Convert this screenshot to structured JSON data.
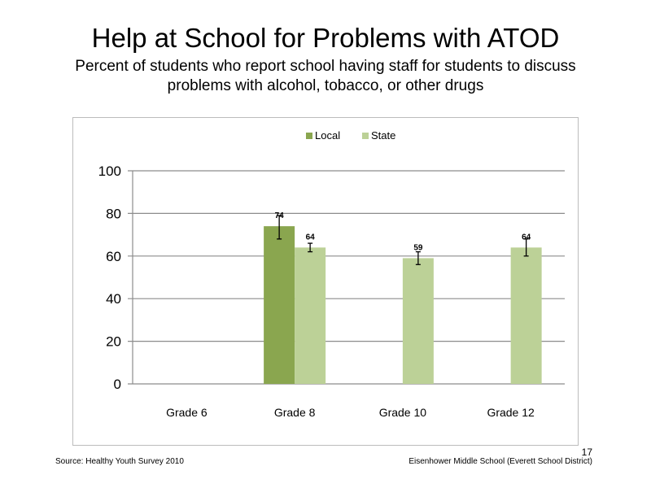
{
  "slide": {
    "title": "Help at School for Problems with ATOD",
    "subtitle": "Percent of students who report school having staff for students to discuss problems with alcohol, tobacco, or other drugs",
    "source": "Source: Healthy Youth Survey 2010",
    "school": "Eisenhower Middle  School (Everett School District)",
    "page_number": "17"
  },
  "chart_data": {
    "type": "bar",
    "categories": [
      "Grade 6",
      "Grade 8",
      "Grade 10",
      "Grade 12"
    ],
    "series": [
      {
        "name": "Local",
        "color": "#8aa64f",
        "values": [
          null,
          74,
          null,
          null
        ],
        "error_low": [
          null,
          68,
          null,
          null
        ],
        "error_high": [
          null,
          79,
          null,
          null
        ]
      },
      {
        "name": "State",
        "color": "#bcd197",
        "values": [
          null,
          64,
          59,
          64
        ],
        "error_low": [
          null,
          62,
          56,
          60
        ],
        "error_high": [
          null,
          66,
          62,
          68
        ]
      }
    ],
    "ylim": [
      0,
      100
    ],
    "yticks": [
      0,
      20,
      40,
      60,
      80,
      100
    ],
    "grid": true,
    "legend": "top"
  }
}
